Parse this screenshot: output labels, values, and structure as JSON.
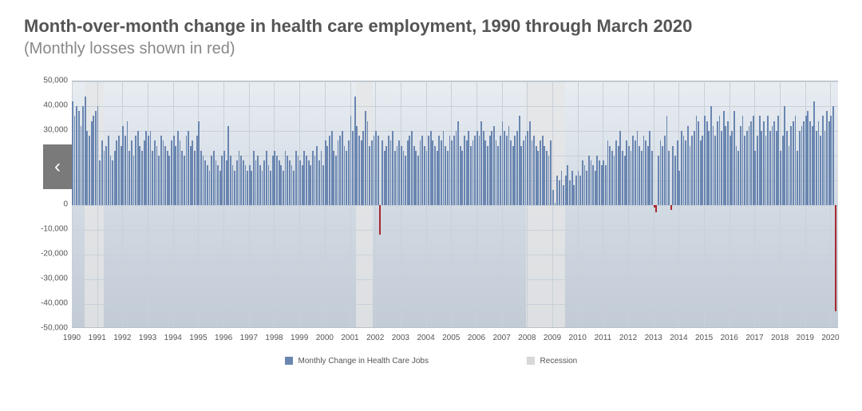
{
  "title": "Month-over-month change in health care employment, 1990 through March 2020",
  "subtitle": "(Monthly losses shown in red)",
  "chart": {
    "type": "bar",
    "ylabel_fontsize": 10,
    "xlabel_fontsize": 10,
    "ylim": [
      -50000,
      50000
    ],
    "ytick_step": 10000,
    "ytick_labels": [
      "-50,000",
      "-40,000",
      "-30,000",
      "-20,000",
      "-10,000",
      "0",
      "10,000",
      "20,000",
      "30,000",
      "40,000",
      "50,000"
    ],
    "x_year_start": 1990,
    "x_year_end": 2020,
    "x_tick_years": [
      1990,
      1991,
      1992,
      1993,
      1994,
      1995,
      1996,
      1997,
      1998,
      1999,
      2000,
      2001,
      2002,
      2003,
      2004,
      2005,
      2006,
      2007,
      2008,
      2009,
      2010,
      2011,
      2012,
      2013,
      2014,
      2015,
      2016,
      2017,
      2018,
      2019,
      2020
    ],
    "bar_color_positive": "#6a86b0",
    "bar_color_negative": "#a8282d",
    "grid_color": "#c8d0d8",
    "background_gradient_top": "#e8edf2",
    "background_gradient_bottom": "#c2cbd6",
    "recession_band_color": "rgba(230,230,230,0.75)",
    "recessions": [
      {
        "start": 1990.5,
        "end": 1991.25
      },
      {
        "start": 2001.25,
        "end": 2001.9
      },
      {
        "start": 2007.95,
        "end": 2009.5
      }
    ],
    "legend": {
      "series_label": "Monthly Change in Health Care Jobs",
      "band_label": "Recession",
      "series_color": "#6a86b0",
      "band_color": "#d8d8d8"
    },
    "values": [
      42000,
      36000,
      40000,
      38000,
      32000,
      40000,
      44000,
      30000,
      28000,
      34000,
      36000,
      38000,
      40000,
      18000,
      26000,
      22000,
      24000,
      28000,
      20000,
      18000,
      22000,
      26000,
      28000,
      24000,
      32000,
      28000,
      34000,
      22000,
      26000,
      20000,
      28000,
      30000,
      24000,
      22000,
      26000,
      30000,
      28000,
      30000,
      22000,
      26000,
      24000,
      20000,
      28000,
      26000,
      24000,
      22000,
      20000,
      26000,
      28000,
      24000,
      30000,
      26000,
      22000,
      20000,
      28000,
      30000,
      24000,
      26000,
      22000,
      28000,
      34000,
      22000,
      20000,
      18000,
      16000,
      14000,
      20000,
      22000,
      18000,
      16000,
      14000,
      20000,
      22000,
      18000,
      32000,
      20000,
      16000,
      14000,
      18000,
      22000,
      20000,
      18000,
      16000,
      14000,
      16000,
      14000,
      22000,
      18000,
      20000,
      16000,
      14000,
      18000,
      22000,
      16000,
      14000,
      20000,
      22000,
      20000,
      18000,
      16000,
      14000,
      22000,
      20000,
      18000,
      16000,
      14000,
      22000,
      20000,
      18000,
      16000,
      22000,
      20000,
      18000,
      16000,
      22000,
      20000,
      24000,
      18000,
      22000,
      16000,
      26000,
      24000,
      28000,
      30000,
      22000,
      20000,
      26000,
      28000,
      30000,
      24000,
      22000,
      26000,
      36000,
      30000,
      44000,
      32000,
      28000,
      26000,
      30000,
      38000,
      34000,
      24000,
      26000,
      28000,
      30000,
      28000,
      -12000,
      26000,
      22000,
      24000,
      28000,
      26000,
      30000,
      22000,
      24000,
      26000,
      24000,
      22000,
      20000,
      26000,
      28000,
      30000,
      24000,
      22000,
      20000,
      26000,
      28000,
      24000,
      22000,
      28000,
      30000,
      26000,
      24000,
      22000,
      28000,
      26000,
      30000,
      24000,
      22000,
      28000,
      26000,
      28000,
      30000,
      34000,
      24000,
      22000,
      28000,
      26000,
      30000,
      24000,
      26000,
      28000,
      30000,
      28000,
      34000,
      30000,
      26000,
      24000,
      28000,
      30000,
      32000,
      26000,
      24000,
      28000,
      34000,
      30000,
      28000,
      32000,
      26000,
      24000,
      28000,
      30000,
      36000,
      24000,
      26000,
      28000,
      30000,
      34000,
      26000,
      28000,
      24000,
      22000,
      26000,
      28000,
      24000,
      22000,
      20000,
      26000,
      6000,
      1000,
      12000,
      10000,
      14000,
      8000,
      12000,
      16000,
      10000,
      14000,
      8000,
      12000,
      14000,
      12000,
      18000,
      16000,
      14000,
      20000,
      18000,
      16000,
      14000,
      20000,
      18000,
      16000,
      18000,
      16000,
      26000,
      24000,
      22000,
      20000,
      26000,
      24000,
      30000,
      22000,
      20000,
      26000,
      24000,
      22000,
      28000,
      26000,
      30000,
      24000,
      22000,
      28000,
      26000,
      24000,
      30000,
      22000,
      -1000,
      -3000,
      20000,
      26000,
      24000,
      28000,
      36000,
      22000,
      -2000,
      24000,
      20000,
      26000,
      14000,
      30000,
      28000,
      26000,
      32000,
      24000,
      28000,
      30000,
      36000,
      34000,
      26000,
      28000,
      36000,
      34000,
      30000,
      40000,
      32000,
      28000,
      34000,
      36000,
      30000,
      38000,
      32000,
      34000,
      28000,
      30000,
      38000,
      24000,
      22000,
      32000,
      36000,
      28000,
      30000,
      32000,
      34000,
      36000,
      22000,
      28000,
      36000,
      30000,
      34000,
      28000,
      36000,
      30000,
      32000,
      34000,
      30000,
      36000,
      22000,
      28000,
      40000,
      30000,
      24000,
      32000,
      34000,
      36000,
      22000,
      30000,
      32000,
      34000,
      36000,
      38000,
      34000,
      32000,
      42000,
      30000,
      34000,
      28000,
      36000,
      30000,
      38000,
      34000,
      36000,
      40000,
      -43000
    ]
  },
  "nav": {
    "prev_glyph": "‹"
  }
}
